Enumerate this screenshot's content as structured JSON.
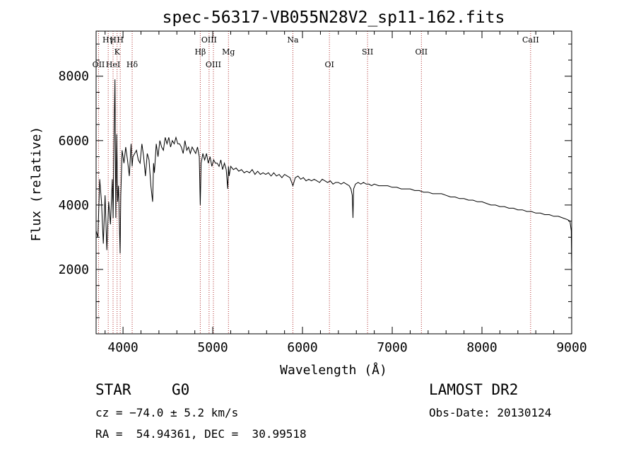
{
  "chart_data": {
    "type": "line",
    "title": "spec-56317-VB055N28V2_sp11-162.fits",
    "xlabel": "Wavelength (Å)",
    "ylabel": "Flux (relative)",
    "xlim": [
      3700,
      9000
    ],
    "ylim": [
      0,
      9400
    ],
    "xticks": [
      4000,
      5000,
      6000,
      7000,
      8000,
      9000
    ],
    "yticks": [
      2000,
      4000,
      6000,
      8000
    ],
    "grid": false,
    "series": [
      {
        "x": [
          3700,
          3720,
          3740,
          3760,
          3780,
          3800,
          3820,
          3840,
          3860,
          3880,
          3890,
          3900,
          3910,
          3920,
          3930,
          3940,
          3950,
          3960,
          3968,
          3975,
          3990,
          4010,
          4030,
          4050,
          4070,
          4090,
          4102,
          4110,
          4130,
          4150,
          4170,
          4190,
          4210,
          4230,
          4250,
          4270,
          4290,
          4310,
          4330,
          4340,
          4350,
          4370,
          4390,
          4410,
          4430,
          4450,
          4470,
          4490,
          4510,
          4530,
          4550,
          4570,
          4590,
          4610,
          4630,
          4650,
          4670,
          4690,
          4710,
          4730,
          4750,
          4770,
          4790,
          4810,
          4830,
          4850,
          4861,
          4870,
          4890,
          4910,
          4930,
          4950,
          4970,
          4990,
          5010,
          5030,
          5050,
          5070,
          5090,
          5110,
          5130,
          5150,
          5167,
          5175,
          5183,
          5200,
          5230,
          5260,
          5290,
          5320,
          5350,
          5380,
          5410,
          5440,
          5470,
          5500,
          5530,
          5560,
          5590,
          5620,
          5650,
          5680,
          5710,
          5740,
          5770,
          5800,
          5830,
          5860,
          5893,
          5920,
          5950,
          5980,
          6010,
          6040,
          6070,
          6100,
          6130,
          6160,
          6190,
          6220,
          6250,
          6280,
          6310,
          6340,
          6370,
          6400,
          6430,
          6460,
          6490,
          6520,
          6540,
          6555,
          6563,
          6570,
          6590,
          6620,
          6650,
          6680,
          6710,
          6740,
          6770,
          6800,
          6850,
          6900,
          6950,
          7000,
          7050,
          7100,
          7150,
          7200,
          7250,
          7300,
          7350,
          7400,
          7450,
          7500,
          7550,
          7600,
          7650,
          7700,
          7750,
          7800,
          7850,
          7900,
          7950,
          8000,
          8050,
          8100,
          8150,
          8200,
          8250,
          8300,
          8350,
          8400,
          8450,
          8500,
          8550,
          8600,
          8650,
          8700,
          8750,
          8800,
          8850,
          8900,
          8950,
          8980,
          8995,
          9000
        ],
        "y": [
          3200,
          3000,
          4800,
          4100,
          2800,
          4300,
          2600,
          4100,
          3400,
          4800,
          3600,
          6200,
          7900,
          3600,
          6200,
          4100,
          4600,
          3400,
          2500,
          4300,
          5700,
          5300,
          5800,
          5400,
          4900,
          5900,
          5200,
          5500,
          5600,
          5700,
          5400,
          5300,
          5900,
          5500,
          4900,
          5600,
          5400,
          4600,
          4100,
          5300,
          5000,
          5900,
          5500,
          6000,
          5800,
          5700,
          6100,
          5900,
          6100,
          5800,
          6000,
          5900,
          6100,
          5900,
          5900,
          5800,
          5600,
          6000,
          5700,
          5800,
          5600,
          5800,
          5700,
          5600,
          5800,
          5500,
          4000,
          5300,
          5600,
          5400,
          5600,
          5300,
          5500,
          5200,
          5400,
          5300,
          5300,
          5200,
          5400,
          5100,
          5300,
          5100,
          4500,
          5200,
          4900,
          5200,
          5100,
          5150,
          5050,
          5100,
          5000,
          5050,
          5000,
          5100,
          4950,
          5050,
          4950,
          5000,
          4950,
          5000,
          4900,
          5000,
          4900,
          4950,
          4850,
          4950,
          4900,
          4850,
          4600,
          4850,
          4900,
          4800,
          4850,
          4750,
          4800,
          4750,
          4800,
          4750,
          4700,
          4800,
          4750,
          4700,
          4750,
          4650,
          4700,
          4700,
          4650,
          4700,
          4650,
          4600,
          4500,
          4300,
          3600,
          4500,
          4650,
          4700,
          4650,
          4700,
          4650,
          4650,
          4600,
          4650,
          4600,
          4600,
          4600,
          4550,
          4550,
          4500,
          4500,
          4500,
          4450,
          4450,
          4400,
          4400,
          4350,
          4350,
          4350,
          4300,
          4250,
          4250,
          4200,
          4200,
          4150,
          4150,
          4100,
          4100,
          4050,
          4000,
          4000,
          3950,
          3950,
          3900,
          3900,
          3850,
          3850,
          3800,
          3800,
          3750,
          3750,
          3700,
          3700,
          3650,
          3650,
          3600,
          3550,
          3500,
          3200,
          2000
        ]
      }
    ],
    "lines": [
      {
        "label": "OII",
        "wl": 3727,
        "row": 3
      },
      {
        "label": "Hγ",
        "wl": 3835,
        "row": 1
      },
      {
        "label": "H",
        "wl": 3889,
        "row": 1
      },
      {
        "label": "HeI",
        "wl": 3889,
        "row": 3
      },
      {
        "label": "K",
        "wl": 3934,
        "row": 2
      },
      {
        "label": "H",
        "wl": 3969,
        "row": 1
      },
      {
        "label": "Hδ",
        "wl": 4102,
        "row": 3
      },
      {
        "label": "Hβ",
        "wl": 4861,
        "row": 2
      },
      {
        "label": "OIII",
        "wl": 4959,
        "row": 1
      },
      {
        "label": "OIII",
        "wl": 5007,
        "row": 3
      },
      {
        "label": "Mg",
        "wl": 5175,
        "row": 2
      },
      {
        "label": "Na",
        "wl": 5893,
        "row": 1
      },
      {
        "label": "OI",
        "wl": 6300,
        "row": 3
      },
      {
        "label": "OII",
        "wl": 7325,
        "row": 2
      },
      {
        "label": "SII",
        "wl": 6725,
        "row": 2
      },
      {
        "label": "CaII",
        "wl": 8542,
        "row": 1
      }
    ],
    "line_color": "#b03030"
  },
  "info": {
    "class": "STAR",
    "subclass": "G0",
    "survey": "LAMOST DR2",
    "cz": "cz = −74.0 ± 5.2 km/s",
    "obsdate": "Obs-Date: 20130124",
    "coords": "RA =  54.94361, DEC =  30.99518"
  }
}
